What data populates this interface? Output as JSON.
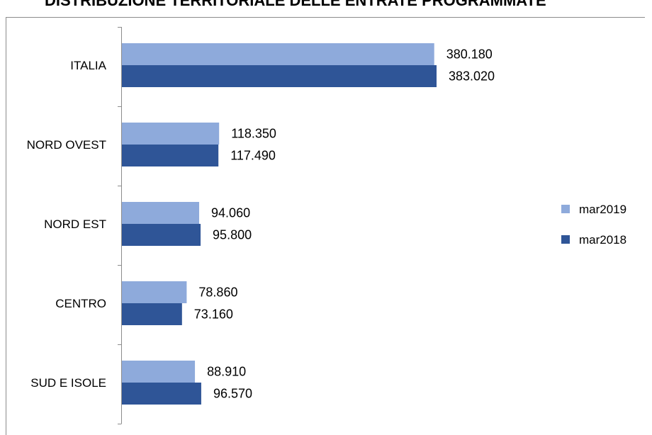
{
  "chart_data": {
    "type": "bar",
    "orientation": "horizontal",
    "title": "DISTRIBUZIONE TERRITORIALE DELLE ENTRATE PROGRAMMATE",
    "categories": [
      "ITALIA",
      "NORD OVEST",
      "NORD EST",
      "CENTRO",
      "SUD E ISOLE"
    ],
    "series": [
      {
        "name": "mar2019",
        "color": "#8eaadb",
        "values": [
          380180,
          118350,
          94060,
          78860,
          88910
        ],
        "labels": [
          "380.180",
          "118.350",
          "94.060",
          "78.860",
          "88.910"
        ]
      },
      {
        "name": "mar2018",
        "color": "#2f5597",
        "values": [
          383020,
          117490,
          95800,
          73160,
          96570
        ],
        "labels": [
          "383.020",
          "117.490",
          "95.800",
          "73.160",
          "96.570"
        ]
      }
    ],
    "xlim": [
      0,
      400000
    ],
    "grid": false,
    "x_axis_visible": false,
    "legend_position": "right"
  }
}
